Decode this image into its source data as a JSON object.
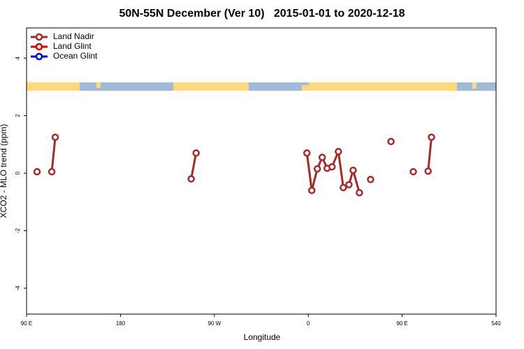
{
  "chart_data": {
    "type": "line",
    "title": "50N-55N December (Ver 10)   2015-01-01 to 2020-12-18",
    "x_label": "Longitude",
    "y_label": "XCO2 - MLO trend (ppm)",
    "x": [
      100.1,
      null,
      114.2,
      117.5,
      null,
      247.8,
      252.5,
      null,
      358.7,
      363.4,
      368.7,
      373.4,
      378.1,
      382.8,
      388.9,
      393.6,
      399.0,
      403.0,
      409.0,
      null,
      419.8,
      null,
      439.3,
      null,
      460.7,
      null,
      474.9,
      478.1
    ],
    "series": [
      {
        "name": "Land Nadir",
        "color": "#a52a2a",
        "values": [
          0.05,
          null,
          0.05,
          1.25,
          null,
          -0.2,
          0.7,
          null,
          0.7,
          -0.6,
          0.15,
          0.55,
          0.17,
          0.22,
          0.75,
          -0.5,
          -0.4,
          0.1,
          -0.68,
          null,
          -0.22,
          null,
          1.1,
          null,
          0.05,
          null,
          0.07,
          1.25
        ]
      },
      {
        "name": "Land Glint",
        "color": "#e00000",
        "values": [
          null,
          null,
          null,
          null,
          null,
          null,
          null,
          null,
          null,
          null,
          null,
          null,
          null,
          null,
          null,
          null,
          null,
          null,
          null,
          null,
          null,
          null,
          null,
          null,
          null,
          null,
          null,
          null
        ]
      },
      {
        "name": "Ocean Glint",
        "color": "#0000e0",
        "values": [
          null,
          null,
          null,
          null,
          null,
          null,
          null,
          null,
          null,
          null,
          null,
          null,
          null,
          null,
          null,
          null,
          null,
          null,
          null,
          null,
          null,
          null,
          null,
          null,
          null,
          null,
          null,
          null
        ]
      }
    ],
    "xlim": [
      90,
      540
    ],
    "xticks": [
      {
        "value": 90,
        "label": "90 E"
      },
      180,
      {
        "value": 270,
        "label": "90 W"
      },
      {
        "value": 360,
        "label": "0"
      },
      {
        "value": 450,
        "label": "90 E"
      },
      540
    ],
    "ylim": [
      -4.9,
      5.05
    ],
    "yticks": [
      -4,
      -2,
      0,
      2,
      4
    ],
    "legend": "top-left"
  }
}
